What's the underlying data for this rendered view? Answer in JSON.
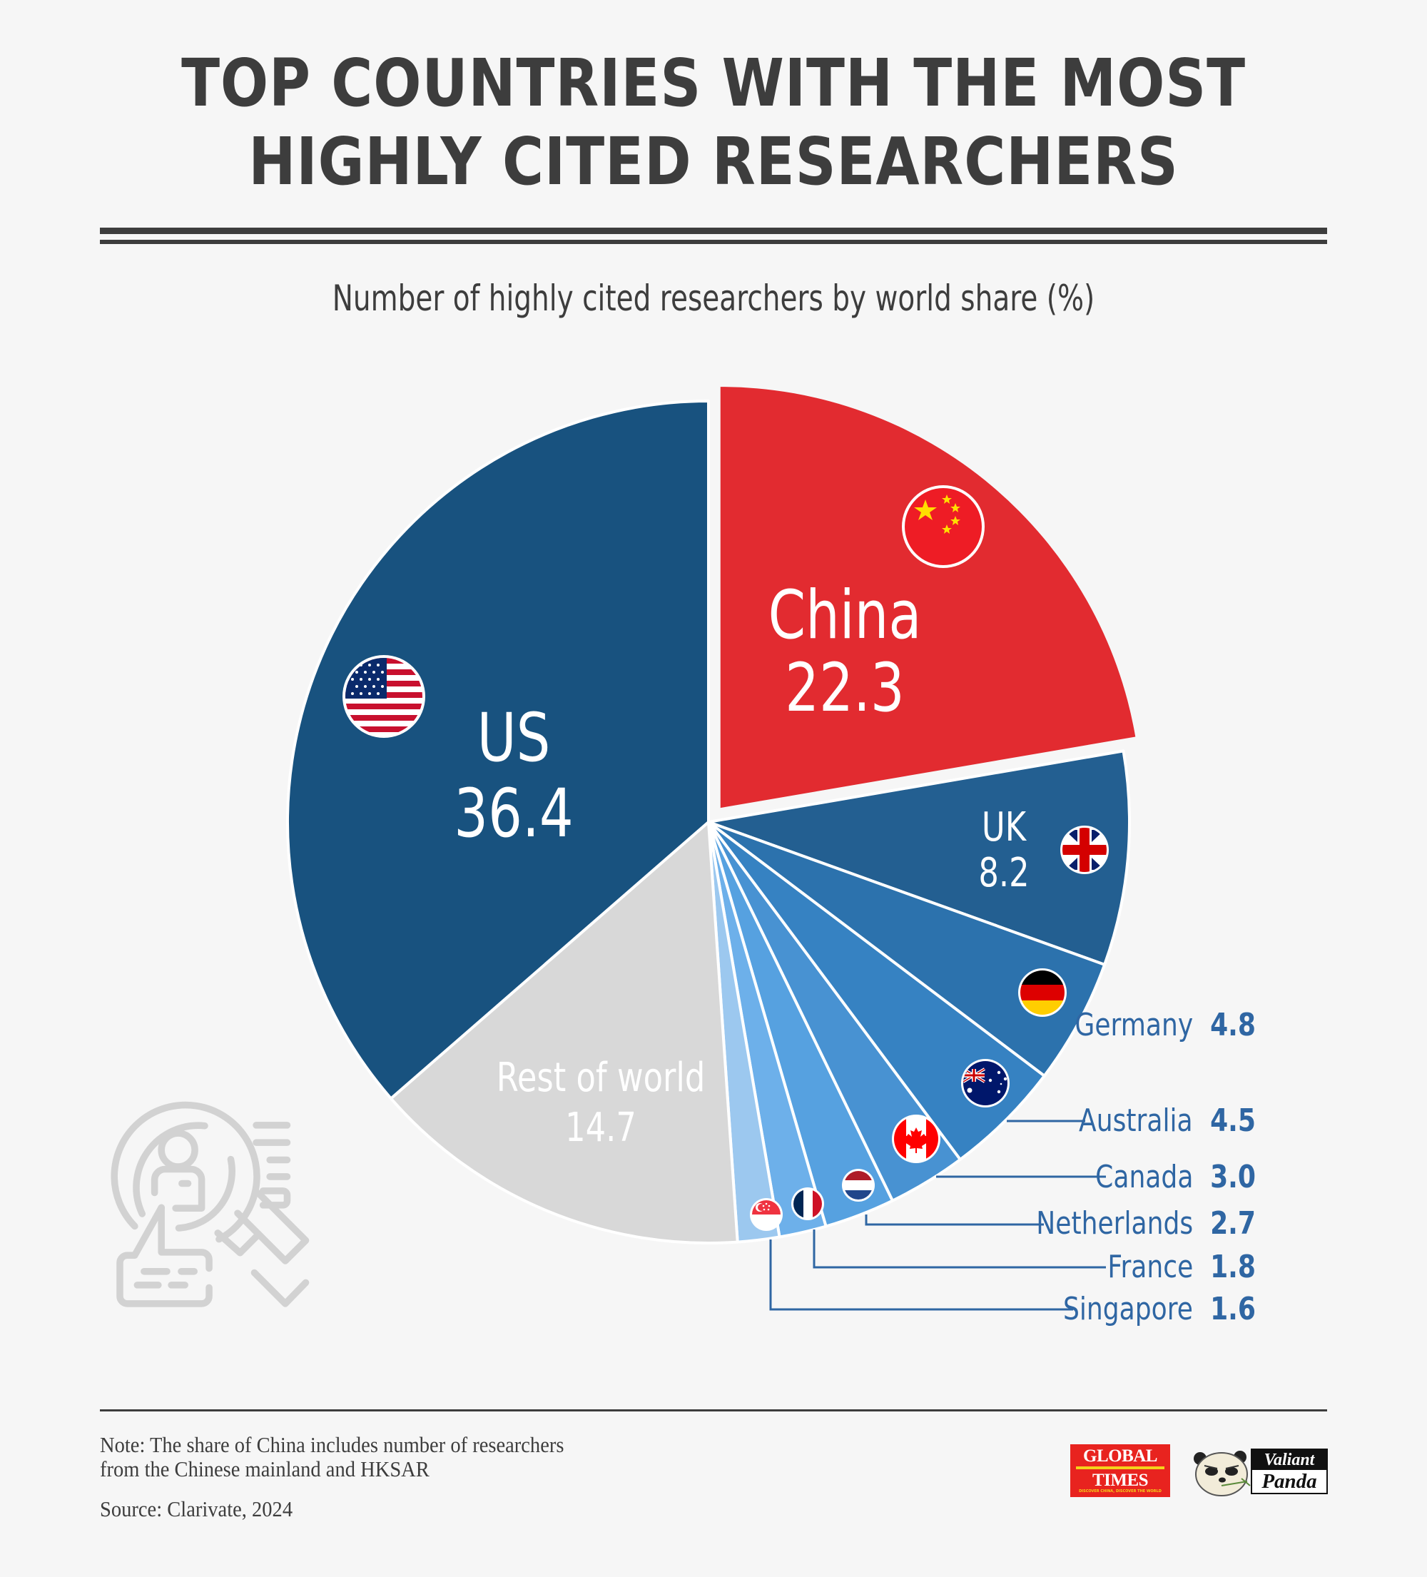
{
  "header": {
    "title_line1": "TOP COUNTRIES WITH THE MOST",
    "title_line2": "HIGHLY CITED RESEARCHERS",
    "subtitle": "Number of highly cited researchers by world share (%)"
  },
  "colors": {
    "background": "#f6f6f6",
    "title_text": "#3d3d3d",
    "china": "#e22b30",
    "us": "#18527f",
    "uk": "#235f91",
    "germany": "#2c72ad",
    "australia": "#3682c2",
    "canada": "#4892d2",
    "netherlands": "#56a1e0",
    "france": "#6db0ea",
    "singapore": "#9cc8ef",
    "rest_of_world": "#d8d8d8",
    "legend_text": "#2f66a3",
    "icon_gray": "#d2d2d2"
  },
  "chart_data": {
    "type": "pie",
    "title": "TOP COUNTRIES WITH THE MOST HIGHLY CITED RESEARCHERS",
    "subtitle": "Number of highly cited researchers by world share (%)",
    "unit": "%",
    "exploded": [
      "China"
    ],
    "categories": [
      "China",
      "UK",
      "Germany",
      "Australia",
      "Canada",
      "Netherlands",
      "France",
      "Singapore",
      "Rest of world",
      "US"
    ],
    "values": [
      22.3,
      8.2,
      4.8,
      4.5,
      3.0,
      2.7,
      1.8,
      1.6,
      14.7,
      36.4
    ],
    "slices": [
      {
        "label": "China",
        "value": 22.3,
        "flag": "china-flag"
      },
      {
        "label": "UK",
        "value": 8.2,
        "flag": "uk-flag"
      },
      {
        "label": "Germany",
        "value": 4.8,
        "flag": "germany-flag"
      },
      {
        "label": "Australia",
        "value": 4.5,
        "flag": "australia-flag"
      },
      {
        "label": "Canada",
        "value": 3.0,
        "flag": "canada-flag"
      },
      {
        "label": "Netherlands",
        "value": 2.7,
        "flag": "netherlands-flag"
      },
      {
        "label": "France",
        "value": 1.8,
        "flag": "france-flag"
      },
      {
        "label": "Singapore",
        "value": 1.6,
        "flag": "singapore-flag"
      },
      {
        "label": "Rest of world",
        "value": 14.7,
        "flag": null
      },
      {
        "label": "US",
        "value": 36.4,
        "flag": "us-flag"
      }
    ]
  },
  "labels": {
    "us": {
      "name": "US",
      "value": "36.4"
    },
    "china": {
      "name": "China",
      "value": "22.3"
    },
    "uk": {
      "name": "UK",
      "value": "8.2"
    },
    "rest": {
      "name": "Rest of world",
      "value": "14.7"
    }
  },
  "legend": [
    {
      "name": "Germany",
      "value": "4.8"
    },
    {
      "name": "Australia",
      "value": "4.5"
    },
    {
      "name": "Canada",
      "value": "3.0"
    },
    {
      "name": "Netherlands",
      "value": "2.7"
    },
    {
      "name": "France",
      "value": "1.8"
    },
    {
      "name": "Singapore",
      "value": "1.6"
    }
  ],
  "footer": {
    "note_line1": "Note: The share of China includes number of researchers",
    "note_line2": "from the Chinese mainland and HKSAR",
    "source": "Source: Clarivate, 2024",
    "logo_global_times_line1": "GLOBAL",
    "logo_global_times_line2": "TIMES",
    "logo_global_times_tagline": "DISCOVER CHINA, DISCOVER THE WORLD",
    "logo_valiant_panda_line1": "Valiant",
    "logo_valiant_panda_line2": "Panda"
  }
}
